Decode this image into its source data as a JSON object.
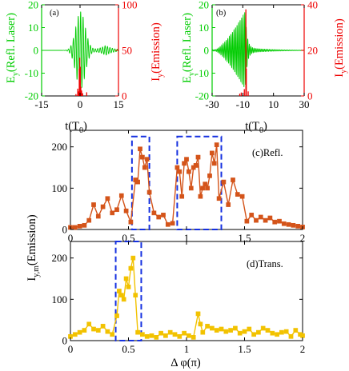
{
  "chart_data": [
    {
      "id": "a",
      "type": "line",
      "panel_label": "(a)",
      "xlabel": "t(T",
      "xlabel_sub": "0",
      "xlabel_close": ")",
      "xlim": [
        -15,
        15
      ],
      "x_ticks": [
        -15,
        0,
        15
      ],
      "left_axis": {
        "label_main": "E",
        "label_sub": "y",
        "label_rest": "(Refl. Laser)",
        "color": "#00cc00",
        "ylim": [
          -20,
          20
        ],
        "ticks": [
          -20,
          -10,
          0,
          10,
          20
        ]
      },
      "right_axis": {
        "label_main": "I",
        "label_sub": "y",
        "label_rest": "(Emission)",
        "color": "#ee0000",
        "ylim": [
          0,
          100
        ],
        "ticks": [
          0,
          50,
          100
        ]
      },
      "series": [
        {
          "axis": "left",
          "color": "#00cc00",
          "envelope_peak": 17,
          "center": 0.2,
          "width": 2.6,
          "period": 1.0
        },
        {
          "axis": "right",
          "color": "#ee0000",
          "spikes": [
            [
              -0.9,
              8
            ],
            [
              -0.3,
              30
            ],
            [
              -0.1,
              42
            ],
            [
              0.1,
              32
            ],
            [
              0.3,
              10
            ],
            [
              -0.6,
              5
            ],
            [
              0.6,
              6
            ],
            [
              1.0,
              3
            ],
            [
              2.6,
              4
            ],
            [
              -1.6,
              2
            ]
          ]
        }
      ]
    },
    {
      "id": "b",
      "type": "line",
      "panel_label": "(b)",
      "xlabel": "t(T",
      "xlabel_sub": "0",
      "xlabel_close": ")",
      "xlim": [
        -30,
        30
      ],
      "x_ticks": [
        -30,
        -10,
        10,
        30
      ],
      "left_axis": {
        "label_main": "E",
        "label_sub": "y",
        "label_rest": "(Refl. Laser)",
        "color": "#00cc00",
        "ylim": [
          -20,
          20
        ],
        "ticks": [
          -20,
          -10,
          0,
          10,
          20
        ]
      },
      "right_axis": {
        "label_main": "I",
        "label_sub": "y",
        "label_rest": "(Emission)",
        "color": "#ee0000",
        "ylim": [
          0,
          40
        ],
        "ticks": [
          0,
          20,
          40
        ]
      },
      "series": [
        {
          "axis": "left",
          "color": "#00cc00",
          "envelope_peak": 17,
          "rise_start": -28,
          "peak_t": -8.5,
          "decay": 1.2,
          "period": 1.0
        },
        {
          "axis": "right",
          "color": "#ee0000",
          "spikes": [
            [
              -8.0,
              38
            ],
            [
              -7.7,
              12
            ],
            [
              -9.0,
              3
            ],
            [
              -6.5,
              2
            ],
            [
              -11,
              1.5
            ],
            [
              -12,
              1
            ]
          ]
        }
      ]
    },
    {
      "id": "c",
      "type": "line",
      "panel_label": "(c)Refl.",
      "color": "#d4541a",
      "xlim": [
        0,
        2
      ],
      "ylim": [
        0,
        240
      ],
      "x_ticks": [
        0,
        0.5,
        1,
        1.5,
        2
      ],
      "y_ticks": [
        0,
        100,
        200
      ],
      "x": [
        0,
        0.04,
        0.08,
        0.12,
        0.16,
        0.2,
        0.24,
        0.28,
        0.32,
        0.36,
        0.4,
        0.44,
        0.48,
        0.52,
        0.56,
        0.58,
        0.6,
        0.62,
        0.64,
        0.66,
        0.68,
        0.72,
        0.76,
        0.8,
        0.84,
        0.88,
        0.92,
        0.94,
        0.96,
        0.98,
        1.0,
        1.02,
        1.04,
        1.06,
        1.08,
        1.1,
        1.12,
        1.14,
        1.16,
        1.18,
        1.2,
        1.22,
        1.24,
        1.26,
        1.28,
        1.32,
        1.36,
        1.4,
        1.44,
        1.48,
        1.52,
        1.56,
        1.6,
        1.64,
        1.68,
        1.72,
        1.76,
        1.8,
        1.84,
        1.88,
        1.92,
        1.96,
        2.0
      ],
      "values": [
        5,
        5,
        8,
        10,
        22,
        60,
        32,
        55,
        75,
        40,
        48,
        82,
        45,
        18,
        120,
        115,
        195,
        175,
        150,
        170,
        90,
        40,
        30,
        35,
        12,
        15,
        150,
        140,
        80,
        160,
        170,
        140,
        100,
        150,
        155,
        175,
        80,
        100,
        110,
        100,
        130,
        185,
        160,
        205,
        75,
        115,
        60,
        120,
        85,
        80,
        20,
        35,
        22,
        30,
        22,
        28,
        18,
        20,
        14,
        12,
        10,
        8,
        6
      ],
      "boxes": [
        [
          0.53,
          0.68,
          0,
          225
        ],
        [
          0.92,
          1.3,
          0,
          225
        ]
      ]
    },
    {
      "id": "d",
      "type": "line",
      "panel_label": "(d)Trans.",
      "color": "#f2c200",
      "xlim": [
        0,
        2
      ],
      "ylim": [
        0,
        240
      ],
      "x_ticks": [
        0,
        0.5,
        1,
        1.5,
        2
      ],
      "y_ticks": [
        0,
        100,
        200
      ],
      "xlabel": "Δ φ(π)",
      "x": [
        0,
        0.04,
        0.08,
        0.12,
        0.16,
        0.2,
        0.24,
        0.28,
        0.32,
        0.36,
        0.4,
        0.42,
        0.44,
        0.46,
        0.48,
        0.5,
        0.52,
        0.54,
        0.56,
        0.58,
        0.62,
        0.66,
        0.7,
        0.74,
        0.78,
        0.82,
        0.86,
        0.9,
        0.94,
        0.98,
        1.02,
        1.06,
        1.1,
        1.12,
        1.14,
        1.18,
        1.22,
        1.26,
        1.3,
        1.34,
        1.38,
        1.42,
        1.46,
        1.5,
        1.54,
        1.58,
        1.62,
        1.66,
        1.7,
        1.74,
        1.78,
        1.82,
        1.86,
        1.9,
        1.94,
        1.98,
        2.0
      ],
      "values": [
        10,
        15,
        20,
        25,
        40,
        28,
        25,
        35,
        22,
        15,
        60,
        120,
        110,
        100,
        150,
        130,
        175,
        200,
        110,
        20,
        15,
        10,
        12,
        8,
        18,
        12,
        20,
        15,
        10,
        18,
        12,
        8,
        65,
        40,
        20,
        35,
        30,
        25,
        28,
        22,
        25,
        30,
        18,
        22,
        28,
        15,
        20,
        30,
        25,
        18,
        15,
        20,
        22,
        10,
        25,
        15,
        12
      ],
      "boxes": [
        [
          0.39,
          0.61,
          0,
          240
        ]
      ]
    }
  ],
  "shared_ylabel": {
    "main": "I",
    "sub": "y,m",
    "rest": "(Emission)"
  }
}
